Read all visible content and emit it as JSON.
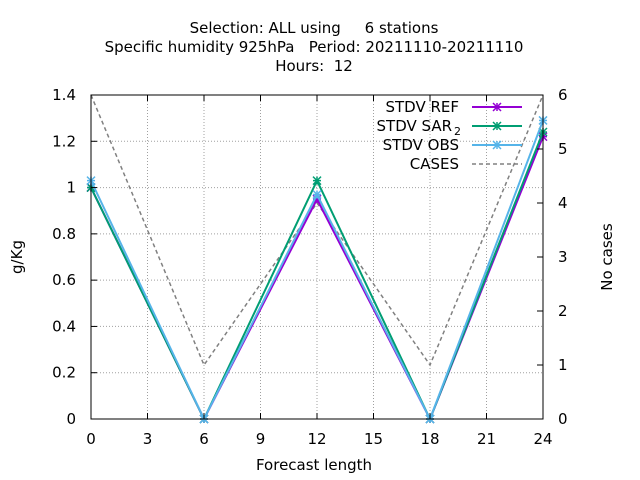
{
  "chart_data": {
    "type": "line",
    "title_lines": [
      "Selection: ALL using     6 stations",
      "Specific humidity 925hPa   Period: 20211110-20211110",
      "Hours:  12"
    ],
    "xlabel": "Forecast length",
    "ylabel": "g/Kg",
    "y2label": "No cases",
    "xlim": [
      0,
      24
    ],
    "ylim": [
      0,
      1.4
    ],
    "y2lim": [
      0,
      6
    ],
    "xticks": [
      "0",
      "3",
      "6",
      "9",
      "12",
      "15",
      "18",
      "21",
      "24"
    ],
    "yticks": [
      "0",
      "0.2",
      "0.4",
      "0.6",
      "0.8",
      "1",
      "1.2",
      "1.4"
    ],
    "y2ticks": [
      "0",
      "1",
      "2",
      "3",
      "4",
      "5",
      "6"
    ],
    "grid": true,
    "legend_position": "top-right",
    "x": [
      0,
      6,
      12,
      18,
      24
    ],
    "series": [
      {
        "name": "STDV REF",
        "axis": "y1",
        "color": "#9400d3",
        "style": "solid",
        "marker": "star",
        "values": [
          1.0,
          0.0,
          0.95,
          0.0,
          1.22
        ]
      },
      {
        "name": "STDV SAR",
        "name_sub": "2",
        "axis": "y1",
        "color": "#009e73",
        "style": "solid",
        "marker": "star",
        "values": [
          1.0,
          0.0,
          1.03,
          0.0,
          1.24
        ]
      },
      {
        "name": "STDV OBS",
        "axis": "y1",
        "color": "#56b4e9",
        "style": "solid",
        "marker": "star",
        "values": [
          1.03,
          0.0,
          0.97,
          0.0,
          1.29
        ]
      },
      {
        "name": "CASES",
        "axis": "y2",
        "color": "#808080",
        "style": "dashed",
        "marker": "none",
        "values": [
          6,
          1,
          4,
          1,
          6
        ]
      }
    ]
  }
}
